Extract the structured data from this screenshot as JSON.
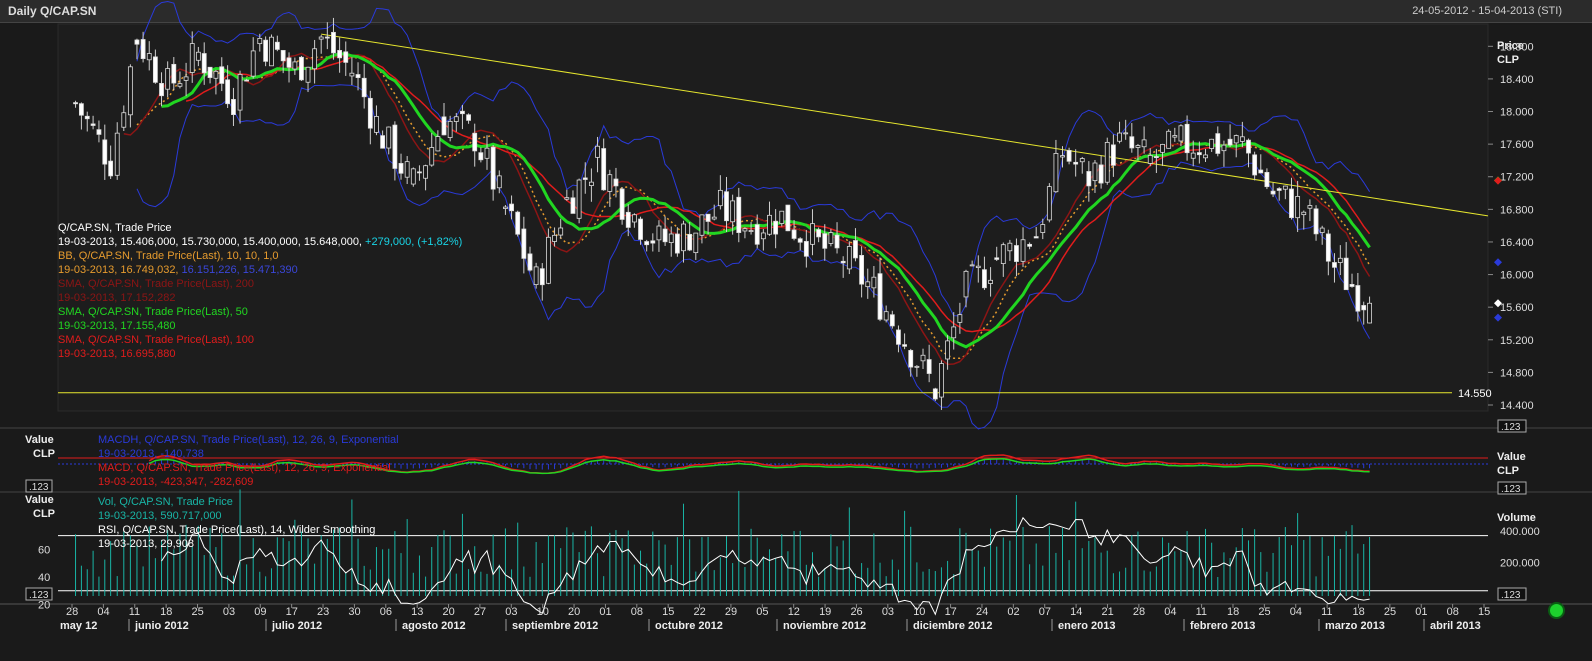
{
  "window": {
    "title": "Daily Q/CAP.SN",
    "date_range": "24-05-2012 - 15-04-2013 (STI)"
  },
  "price_axis": {
    "title": "Price",
    "unit": "CLP",
    "ticks": [
      "18.800",
      "18.400",
      "18.000",
      "17.600",
      "17.200",
      "16.800",
      "16.400",
      "16.000",
      "15.600",
      "15.200",
      "14.800",
      "14.400"
    ],
    "ylim": [
      14.4,
      19.0
    ],
    "badge": ".123"
  },
  "support_level": {
    "label": "14.550",
    "value": 14.55
  },
  "legend_price": [
    {
      "text": "Q/CAP.SN, Trade Price",
      "color": "#ffffff"
    },
    {
      "text": "19-03-2013, 15.406,000, 15.730,000, 15.400,000, 15.648,000, +279,000, (+1,82%)",
      "color": "#ffffff",
      "accent": "+279,000, (+1,82%)",
      "accent_color": "#19d4e6"
    },
    {
      "text": "BB, Q/CAP.SN, Trade Price(Last), 10, 10, 1,0",
      "color": "#e69b2e"
    },
    {
      "text": "19-03-2013, 16.749,032, 16.151,226, 15.471,390",
      "color": "#e69b2e",
      "accent": "16.151,226, 15.471,390",
      "accent_color": "#3a46d9"
    },
    {
      "text": "SMA, Q/CAP.SN, Trade Price(Last), 200",
      "color": "#8c1515"
    },
    {
      "text": "19-03-2013, 17.152,282",
      "color": "#8c1515"
    },
    {
      "text": "SMA, Q/CAP.SN, Trade Price(Last), 50",
      "color": "#21d621"
    },
    {
      "text": "19-03-2013, 17.155,480",
      "color": "#21d621"
    },
    {
      "text": "SMA, Q/CAP.SN, Trade Price(Last), 100",
      "color": "#e01c1c"
    },
    {
      "text": "19-03-2013, 16.695,880",
      "color": "#e01c1c"
    }
  ],
  "macd_axis": {
    "title": "Value",
    "unit": "CLP",
    "badge": ".123",
    "right_title": "Value",
    "right_unit": "CLP",
    "right_badge": ".123"
  },
  "legend_macd": [
    {
      "text": "MACDH, Q/CAP.SN, Trade Price(Last), 12, 26, 9, Exponential",
      "color": "#2a3ad9"
    },
    {
      "text": "19-03-2013, -140,738",
      "color": "#2a3ad9"
    },
    {
      "text": "MACD, Q/CAP.SN, Trade Price(Last), 12, 26, 9, Exponential",
      "color": "#e01c1c"
    },
    {
      "text": "19-03-2013, -423,347, -282,609",
      "color": "#e01c1c"
    }
  ],
  "lower_axis": {
    "title": "Value",
    "unit": "CLP",
    "ticks": [
      "60",
      "40",
      "20"
    ],
    "badge": ".123",
    "right_title": "Volume",
    "right_ticks": [
      "400.000",
      "200.000"
    ],
    "right_badge": ".123"
  },
  "legend_lower": [
    {
      "text": "Vol, Q/CAP.SN, Trade Price",
      "color": "#19b5a6"
    },
    {
      "text": "19-03-2013, 590.717,000",
      "color": "#19b5a6"
    },
    {
      "text": "RSI, Q/CAP.SN, Trade Price(Last), 14, Wilder Smoothing",
      "color": "#ffffff"
    },
    {
      "text": "19-03-2013, 29,908",
      "color": "#ffffff"
    }
  ],
  "x_axis": {
    "day_ticks": [
      "28",
      "04",
      "11",
      "18",
      "25",
      "03",
      "09",
      "17",
      "23",
      "30",
      "06",
      "13",
      "20",
      "27",
      "03",
      "10",
      "20",
      "01",
      "08",
      "15",
      "22",
      "29",
      "05",
      "12",
      "19",
      "26",
      "03",
      "10",
      "17",
      "24",
      "02",
      "07",
      "14",
      "21",
      "28",
      "04",
      "11",
      "18",
      "25",
      "04",
      "11",
      "18",
      "25",
      "01",
      "08",
      "15"
    ],
    "months": [
      "may 12",
      "junio 2012",
      "julio 2012",
      "agosto 2012",
      "septiembre 2012",
      "octubre 2012",
      "noviembre 2012",
      "diciembre 2012",
      "enero 2013",
      "febrero 2013",
      "marzo 2013",
      "abril 2013"
    ]
  },
  "colors": {
    "background": "#1a1a1a",
    "candle_up": "#dcdcdc",
    "candle_down": "#ffffff",
    "sma50": "#21d621",
    "sma100": "#e01c1c",
    "sma200": "#8c1515",
    "bb_upper": "#2a3ad9",
    "bb_mid": "#e69b2e",
    "trendline": "#e6e62e",
    "volume": "#19b5a6",
    "rsi": "#ffffff"
  },
  "chart_data": {
    "type": "candlestick",
    "title": "Daily Q/CAP.SN",
    "x_start": "2012-05-24",
    "x_end": "2013-04-15",
    "ylim": [
      14.4,
      19.0
    ],
    "last_bar": {
      "date": "19-03-2013",
      "open": 15.406,
      "high": 15.73,
      "low": 15.4,
      "close": 15.648,
      "change": 0.279,
      "change_pct": 1.82
    },
    "close_series": [
      {
        "date": "2012-05-28",
        "close": 18.1
      },
      {
        "date": "2012-06-05",
        "close": 17.4
      },
      {
        "date": "2012-06-11",
        "close": 18.9
      },
      {
        "date": "2012-06-18",
        "close": 18.3
      },
      {
        "date": "2012-06-25",
        "close": 18.7
      },
      {
        "date": "2012-07-03",
        "close": 18.2
      },
      {
        "date": "2012-07-09",
        "close": 18.9
      },
      {
        "date": "2012-07-17",
        "close": 18.5
      },
      {
        "date": "2012-07-23",
        "close": 18.9
      },
      {
        "date": "2012-07-30",
        "close": 18.5
      },
      {
        "date": "2012-08-06",
        "close": 17.7
      },
      {
        "date": "2012-08-13",
        "close": 17.1
      },
      {
        "date": "2012-08-20",
        "close": 17.9
      },
      {
        "date": "2012-08-27",
        "close": 17.7
      },
      {
        "date": "2012-09-03",
        "close": 16.8
      },
      {
        "date": "2012-09-10",
        "close": 15.9
      },
      {
        "date": "2012-09-17",
        "close": 16.9
      },
      {
        "date": "2012-09-24",
        "close": 17.4
      },
      {
        "date": "2012-10-01",
        "close": 16.8
      },
      {
        "date": "2012-10-08",
        "close": 16.4
      },
      {
        "date": "2012-10-15",
        "close": 16.5
      },
      {
        "date": "2012-10-22",
        "close": 16.8
      },
      {
        "date": "2012-10-29",
        "close": 16.6
      },
      {
        "date": "2012-11-05",
        "close": 16.7
      },
      {
        "date": "2012-11-12",
        "close": 16.4
      },
      {
        "date": "2012-11-19",
        "close": 16.2
      },
      {
        "date": "2012-11-26",
        "close": 15.8
      },
      {
        "date": "2012-12-03",
        "close": 15.2
      },
      {
        "date": "2012-12-10",
        "close": 14.6
      },
      {
        "date": "2012-12-17",
        "close": 15.8
      },
      {
        "date": "2012-12-24",
        "close": 16.2
      },
      {
        "date": "2013-01-02",
        "close": 16.5
      },
      {
        "date": "2013-01-08",
        "close": 17.5
      },
      {
        "date": "2013-01-14",
        "close": 17.2
      },
      {
        "date": "2013-01-21",
        "close": 17.6
      },
      {
        "date": "2013-01-28",
        "close": 17.4
      },
      {
        "date": "2013-02-04",
        "close": 17.6
      },
      {
        "date": "2013-02-11",
        "close": 17.6
      },
      {
        "date": "2013-02-18",
        "close": 17.6
      },
      {
        "date": "2013-02-25",
        "close": 17.0
      },
      {
        "date": "2013-03-04",
        "close": 16.8
      },
      {
        "date": "2013-03-11",
        "close": 16.1
      },
      {
        "date": "2013-03-19",
        "close": 15.648
      }
    ],
    "indicators": {
      "sma50": {
        "last": 17.15548
      },
      "sma100": {
        "last": 16.69588
      },
      "sma200": {
        "last": 17.152282
      },
      "bollinger": {
        "upper": 16.749032,
        "middle": 16.151226,
        "lower": 15.47139
      },
      "macd": {
        "macd": -423.347,
        "signal": -282.609,
        "histogram": -140.738
      },
      "volume": {
        "last": 590717
      },
      "rsi": {
        "last": 29.908,
        "upper_band": 70,
        "lower_band": 30
      }
    }
  }
}
